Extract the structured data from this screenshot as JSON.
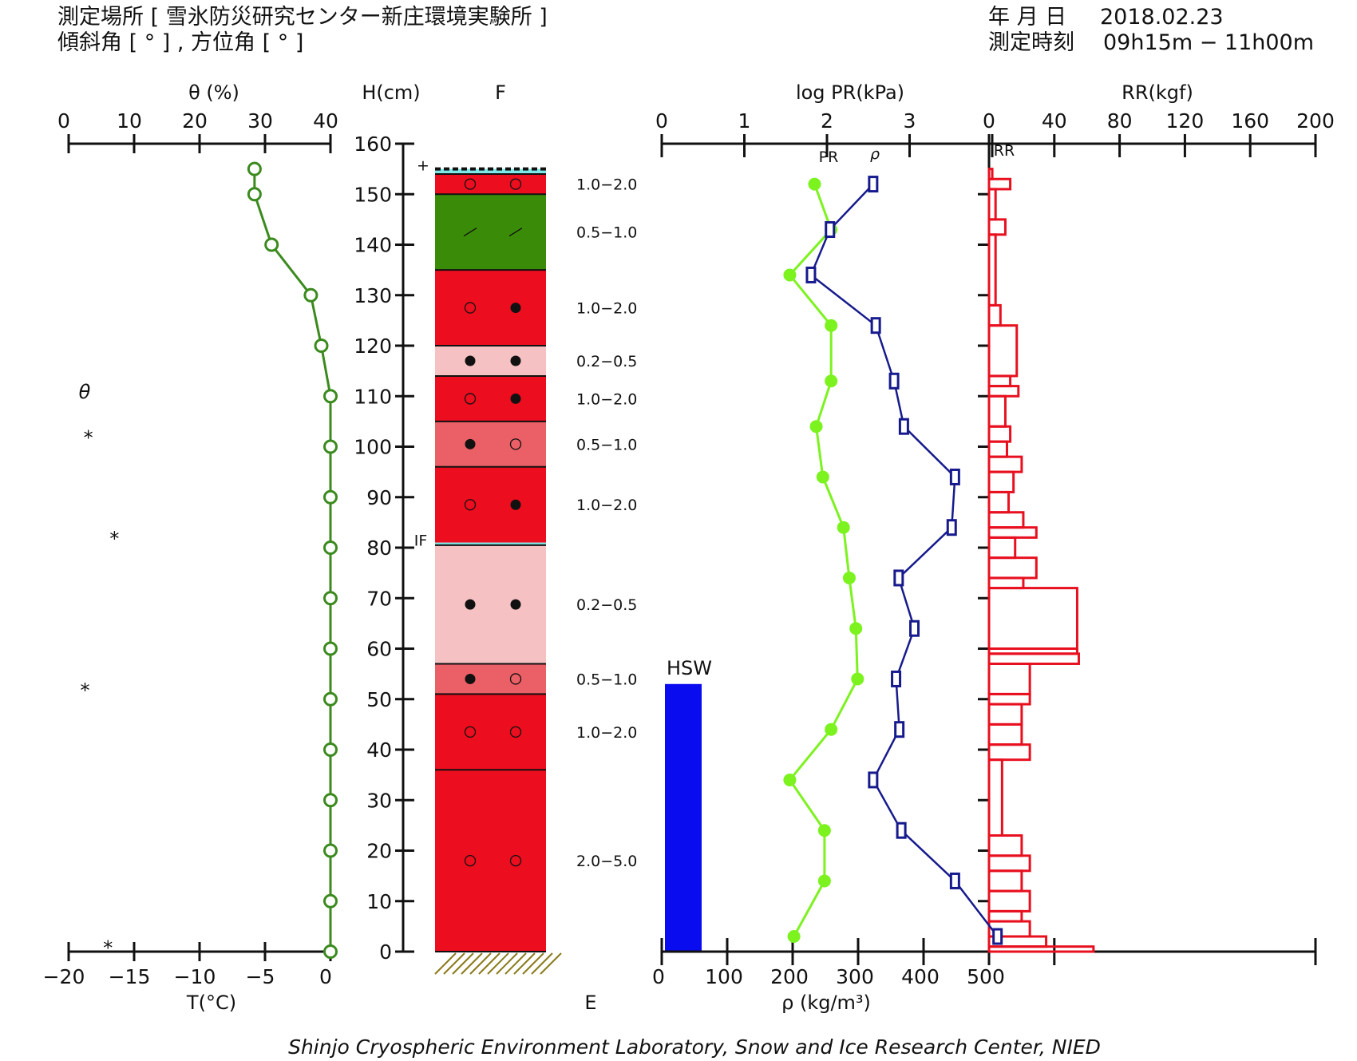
{
  "header": {
    "site_line": "測定場所 [ 雪氷防災研究センター新庄環境実験所 ]",
    "angle_line": "傾斜角 [ ° ] , 方位角 [ ° ]",
    "date_label": "年 月 日",
    "date_value": "2018.02.23",
    "time_label": "測定時刻",
    "time_value": "09h15m − 11h00m"
  },
  "footer": "Shinjo Cryospheric Environment Laboratory, Snow and Ice Research Center, NIED",
  "labels": {
    "theta_axis": "θ (%)",
    "height_axis": "H(cm)",
    "f_label": "F",
    "e_label": "E",
    "temp_axis": "T(°C)",
    "logpr_axis": "log PR(kPa)",
    "rr_axis": "RR(kgf)",
    "density_axis": "ρ (kg/m³)",
    "pr_series": "PR",
    "rho_series": "ρ",
    "rr_series": "RR",
    "hsw": "HSW",
    "theta_marker": "θ",
    "if_mark": "IF",
    "plus_mark": "+"
  },
  "colors": {
    "temp": "#3b8a1e",
    "pr": "#7cf21f",
    "rho": "#161a8c",
    "rr": "#e8101f",
    "hsw": "#0a0cf0",
    "layer_red": "#ec0d1f",
    "layer_green": "#3a8c08",
    "layer_pink": "#f6c1c3",
    "layer_salmon": "#eb5f66",
    "ice": "#7ee7e7",
    "ground": "#8a7a1a"
  },
  "chart_data": {
    "type": "line",
    "axes": {
      "theta": {
        "ticks": [
          0,
          10,
          20,
          30,
          40
        ],
        "range": [
          0,
          40
        ]
      },
      "temperature": {
        "ticks": [
          -20,
          -15,
          -10,
          -5,
          0
        ],
        "range": [
          -20,
          0
        ]
      },
      "height": {
        "ticks": [
          0,
          10,
          20,
          30,
          40,
          50,
          60,
          70,
          80,
          90,
          100,
          110,
          120,
          130,
          140,
          150,
          160
        ],
        "range": [
          0,
          160
        ]
      },
      "log_pr": {
        "ticks": [
          0,
          1,
          2,
          3
        ],
        "range": [
          0,
          4
        ]
      },
      "density": {
        "ticks": [
          0,
          100,
          200,
          300,
          400,
          500
        ],
        "range": [
          0,
          500
        ]
      },
      "rr": {
        "ticks": [
          0,
          40,
          80,
          120,
          160,
          200
        ],
        "range": [
          0,
          200
        ]
      }
    },
    "snow_surface_height": 155,
    "temperature_profile": [
      {
        "h": 155,
        "t": -5.8
      },
      {
        "h": 150,
        "t": -5.8
      },
      {
        "h": 140,
        "t": -4.5
      },
      {
        "h": 130,
        "t": -1.5
      },
      {
        "h": 120,
        "t": -0.7
      },
      {
        "h": 110,
        "t": 0
      },
      {
        "h": 100,
        "t": 0
      },
      {
        "h": 90,
        "t": 0
      },
      {
        "h": 80,
        "t": 0
      },
      {
        "h": 70,
        "t": 0
      },
      {
        "h": 60,
        "t": 0
      },
      {
        "h": 50,
        "t": 0
      },
      {
        "h": 40,
        "t": 0
      },
      {
        "h": 30,
        "t": 0
      },
      {
        "h": 20,
        "t": 0
      },
      {
        "h": 10,
        "t": 0
      },
      {
        "h": 0,
        "t": 0
      }
    ],
    "water_content_points": [
      {
        "h": 103,
        "theta": 3
      },
      {
        "h": 83,
        "theta": 7
      },
      {
        "h": 53,
        "theta": 2.5
      },
      {
        "h": 2,
        "theta": 6
      }
    ],
    "layers": [
      {
        "top": 155,
        "bottom": 154,
        "fill": "ice"
      },
      {
        "top": 154,
        "bottom": 150,
        "fill": "layer_red",
        "grain": [
          "○",
          "○"
        ],
        "size": "1.0−2.0"
      },
      {
        "top": 150,
        "bottom": 135,
        "fill": "layer_green",
        "grain": [
          "／",
          "／"
        ],
        "size": "0.5−1.0"
      },
      {
        "top": 135,
        "bottom": 120,
        "fill": "layer_red",
        "grain": [
          "○",
          "●"
        ],
        "size": "1.0−2.0"
      },
      {
        "top": 120,
        "bottom": 114,
        "fill": "layer_pink",
        "grain": [
          "●",
          "●"
        ],
        "size": "0.2−0.5"
      },
      {
        "top": 114,
        "bottom": 105,
        "fill": "layer_red",
        "grain": [
          "○",
          "●"
        ],
        "size": "1.0−2.0"
      },
      {
        "top": 105,
        "bottom": 96,
        "fill": "layer_salmon",
        "grain": [
          "●",
          "○"
        ],
        "size": "0.5−1.0"
      },
      {
        "top": 96,
        "bottom": 81,
        "fill": "layer_red",
        "grain": [
          "○",
          "●"
        ],
        "size": "1.0−2.0"
      },
      {
        "top": 81,
        "bottom": 80.5,
        "fill": "ice"
      },
      {
        "top": 80.5,
        "bottom": 57,
        "fill": "layer_pink",
        "grain": [
          "●",
          "●"
        ],
        "size": "0.2−0.5"
      },
      {
        "top": 57,
        "bottom": 51,
        "fill": "layer_salmon",
        "grain": [
          "●",
          "○"
        ],
        "size": "0.5−1.0"
      },
      {
        "top": 51,
        "bottom": 36,
        "fill": "layer_red",
        "grain": [
          "○",
          "○"
        ],
        "size": "1.0−2.0"
      },
      {
        "top": 36,
        "bottom": 0,
        "fill": "layer_red",
        "grain": [
          "○",
          "○"
        ],
        "size": "2.0−5.0"
      }
    ],
    "hsw_height": 53,
    "pr_profile": [
      {
        "h": 152,
        "logpr": 1.85
      },
      {
        "h": 143,
        "logpr": 2.05
      },
      {
        "h": 134,
        "logpr": 1.55
      },
      {
        "h": 124,
        "logpr": 2.05
      },
      {
        "h": 113,
        "logpr": 2.05
      },
      {
        "h": 104,
        "logpr": 1.87
      },
      {
        "h": 94,
        "logpr": 1.95
      },
      {
        "h": 84,
        "logpr": 2.2
      },
      {
        "h": 74,
        "logpr": 2.27
      },
      {
        "h": 64,
        "logpr": 2.35
      },
      {
        "h": 54,
        "logpr": 2.37
      },
      {
        "h": 44,
        "logpr": 2.05
      },
      {
        "h": 34,
        "logpr": 1.55
      },
      {
        "h": 24,
        "logpr": 1.97
      },
      {
        "h": 14,
        "logpr": 1.97
      },
      {
        "h": 3,
        "logpr": 1.6
      }
    ],
    "density_profile": [
      {
        "h": 152,
        "rho": 323
      },
      {
        "h": 143,
        "rho": 257
      },
      {
        "h": 134,
        "rho": 228
      },
      {
        "h": 124,
        "rho": 327
      },
      {
        "h": 113,
        "rho": 355
      },
      {
        "h": 104,
        "rho": 370
      },
      {
        "h": 94,
        "rho": 448
      },
      {
        "h": 84,
        "rho": 443
      },
      {
        "h": 74,
        "rho": 362
      },
      {
        "h": 64,
        "rho": 386
      },
      {
        "h": 54,
        "rho": 358
      },
      {
        "h": 44,
        "rho": 363
      },
      {
        "h": 34,
        "rho": 323
      },
      {
        "h": 24,
        "rho": 366
      },
      {
        "h": 14,
        "rho": 448
      },
      {
        "h": 3,
        "rho": 513
      }
    ],
    "rr_profile": [
      {
        "top": 155,
        "bottom": 153,
        "rr": 2
      },
      {
        "top": 153,
        "bottom": 151,
        "rr": 13
      },
      {
        "top": 151,
        "bottom": 145,
        "rr": 4
      },
      {
        "top": 145,
        "bottom": 142,
        "rr": 10
      },
      {
        "top": 142,
        "bottom": 128,
        "rr": 4
      },
      {
        "top": 128,
        "bottom": 124,
        "rr": 7
      },
      {
        "top": 124,
        "bottom": 114,
        "rr": 17
      },
      {
        "top": 114,
        "bottom": 112,
        "rr": 13
      },
      {
        "top": 112,
        "bottom": 110,
        "rr": 18
      },
      {
        "top": 110,
        "bottom": 104,
        "rr": 10
      },
      {
        "top": 104,
        "bottom": 101,
        "rr": 13
      },
      {
        "top": 101,
        "bottom": 98,
        "rr": 11
      },
      {
        "top": 98,
        "bottom": 95,
        "rr": 20
      },
      {
        "top": 95,
        "bottom": 91,
        "rr": 15
      },
      {
        "top": 91,
        "bottom": 87,
        "rr": 12
      },
      {
        "top": 87,
        "bottom": 84,
        "rr": 21
      },
      {
        "top": 84,
        "bottom": 82,
        "rr": 29
      },
      {
        "top": 82,
        "bottom": 78,
        "rr": 16
      },
      {
        "top": 78,
        "bottom": 74,
        "rr": 29
      },
      {
        "top": 74,
        "bottom": 72,
        "rr": 21
      },
      {
        "top": 72,
        "bottom": 60,
        "rr": 54
      },
      {
        "top": 60,
        "bottom": 59,
        "rr": 54
      },
      {
        "top": 59,
        "bottom": 57,
        "rr": 55
      },
      {
        "top": 57,
        "bottom": 51,
        "rr": 25
      },
      {
        "top": 51,
        "bottom": 49,
        "rr": 25
      },
      {
        "top": 49,
        "bottom": 45,
        "rr": 20
      },
      {
        "top": 45,
        "bottom": 41,
        "rr": 20
      },
      {
        "top": 41,
        "bottom": 38,
        "rr": 25
      },
      {
        "top": 38,
        "bottom": 23,
        "rr": 8
      },
      {
        "top": 23,
        "bottom": 19,
        "rr": 20
      },
      {
        "top": 19,
        "bottom": 16,
        "rr": 25
      },
      {
        "top": 16,
        "bottom": 12,
        "rr": 20
      },
      {
        "top": 12,
        "bottom": 8,
        "rr": 25
      },
      {
        "top": 8,
        "bottom": 6,
        "rr": 20
      },
      {
        "top": 6,
        "bottom": 3,
        "rr": 25
      },
      {
        "top": 3,
        "bottom": 1,
        "rr": 35
      },
      {
        "top": 1,
        "bottom": 0,
        "rr": 64
      }
    ]
  }
}
